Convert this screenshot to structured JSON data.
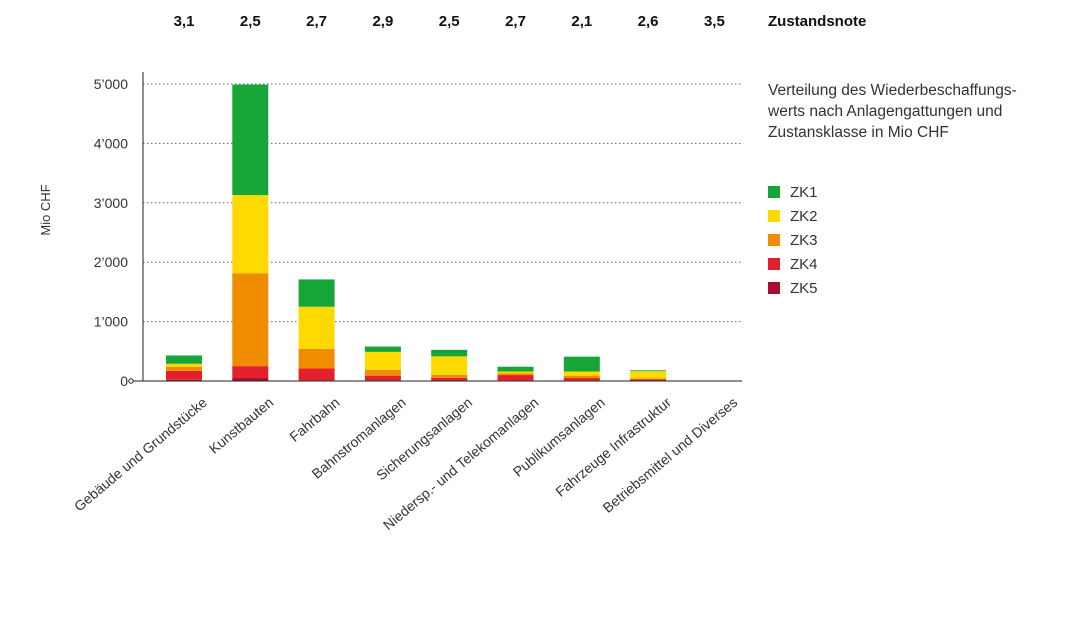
{
  "chart_data": {
    "type": "bar",
    "stacked": true,
    "ylabel": "Mio CHF",
    "ylim": [
      0,
      5000
    ],
    "yticks": [
      0,
      1000,
      2000,
      3000,
      4000,
      5000
    ],
    "ytick_labels": [
      "0",
      "1’000",
      "2’000",
      "3’000",
      "4’000",
      "5’000"
    ],
    "grid": "horizontal dotted",
    "legend_position": "right",
    "description": "Verteilung des Wiederbeschaffungs-werts nach Anlagengattungen und Zustansklasse in Mio CHF",
    "description_lines": [
      "Verteilung des Wiederbeschaffungs-",
      "werts nach Anlagengattungen und",
      "Zustansklasse in Mio CHF"
    ],
    "condition_header": "Zustandsnote",
    "condition_scores": [
      "3,1",
      "2,5",
      "2,7",
      "2,9",
      "2,5",
      "2,7",
      "2,1",
      "2,6",
      "3,5"
    ],
    "categories": [
      "Gebäude und Grundstücke",
      "Kunstbauten",
      "Fahrbahn",
      "Bahnstromanlagen",
      "Sicherungsanlagen",
      "Niedersp.- und Telekomanlagen",
      "Publikumsanlagen",
      "Fahrzeuge Infrastruktur",
      "Betriebsmittel und Diverses"
    ],
    "series": [
      {
        "name": "ZK5",
        "color": "#a50f2d",
        "values": [
          20,
          50,
          10,
          10,
          15,
          10,
          10,
          5,
          0
        ]
      },
      {
        "name": "ZK4",
        "color": "#e3202c",
        "values": [
          150,
          200,
          200,
          80,
          40,
          90,
          40,
          20,
          0
        ]
      },
      {
        "name": "ZK3",
        "color": "#f08c00",
        "values": [
          70,
          1560,
          330,
          100,
          50,
          30,
          40,
          20,
          0
        ]
      },
      {
        "name": "ZK2",
        "color": "#ffd900",
        "values": [
          50,
          1320,
          710,
          300,
          310,
          30,
          70,
          120,
          0
        ]
      },
      {
        "name": "ZK1",
        "color": "#16a637",
        "values": [
          140,
          1860,
          460,
          90,
          110,
          80,
          250,
          15,
          0
        ]
      }
    ],
    "legend_order": [
      "ZK1",
      "ZK2",
      "ZK3",
      "ZK4",
      "ZK5"
    ]
  }
}
